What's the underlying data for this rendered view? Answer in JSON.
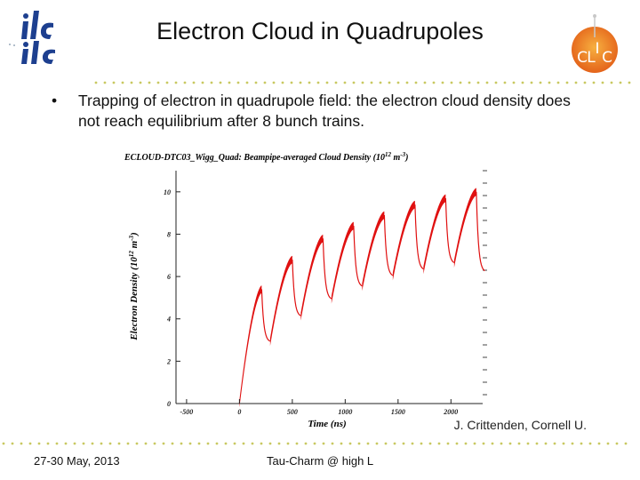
{
  "slide": {
    "title": "Electron Cloud in Quadrupoles",
    "bullet": "Trapping of electron in quadrupole field: the electron cloud density does not  reach equilibrium after 8 bunch trains.",
    "credit": "J. Crittenden, Cornell U.",
    "footer_left": "27-30 May, 2013",
    "footer_center": "Tau-Charm @ high L"
  },
  "logos": {
    "left": "ilc",
    "right_letters": [
      "C",
      "L",
      "I",
      "C"
    ]
  },
  "colors": {
    "accent_dots": "#c8c860",
    "curve": "#e01010",
    "clic_orange": "#f08020"
  },
  "chart_data": {
    "type": "line",
    "title": "ECLOUD-DTC03_Wigg_Quad: Beampipe-averaged Cloud Density (10",
    "title_exp": "12",
    "title_unit": " m",
    "title_unit_exp": "-3",
    "title_close": ")",
    "xlabel": "Time (ns)",
    "ylabel": "Electron Density (10",
    "ylabel_exp": "12",
    "ylabel_unit": " m",
    "ylabel_unit_exp": "-3",
    "ylabel_close": ")",
    "xlim": [
      -600,
      2300
    ],
    "ylim": [
      0,
      11
    ],
    "xticks": [
      {
        "value": -500,
        "label": "-500"
      },
      {
        "value": 0,
        "label": "0"
      },
      {
        "value": 500,
        "label": "500"
      },
      {
        "value": 1000,
        "label": "1000"
      },
      {
        "value": 1500,
        "label": "1500"
      },
      {
        "value": 2000,
        "label": "2000"
      }
    ],
    "yticks": [
      {
        "value": 0,
        "label": "0"
      },
      {
        "value": 2,
        "label": "2"
      },
      {
        "value": 4,
        "label": "4"
      },
      {
        "value": 6,
        "label": "6"
      },
      {
        "value": 8,
        "label": "8"
      },
      {
        "value": 10,
        "label": "10"
      }
    ],
    "bunch_trains": [
      {
        "start": 0,
        "end": 210,
        "start_value": 0.0,
        "peak": 5.4,
        "floor": 2.9
      },
      {
        "start": 290,
        "end": 500,
        "start_value": 2.9,
        "peak": 6.8,
        "floor": 4.1
      },
      {
        "start": 580,
        "end": 790,
        "start_value": 4.1,
        "peak": 7.8,
        "floor": 4.9
      },
      {
        "start": 870,
        "end": 1080,
        "start_value": 4.9,
        "peak": 8.4,
        "floor": 5.5
      },
      {
        "start": 1160,
        "end": 1370,
        "start_value": 5.5,
        "peak": 8.9,
        "floor": 6.0
      },
      {
        "start": 1450,
        "end": 1660,
        "start_value": 6.0,
        "peak": 9.4,
        "floor": 6.3
      },
      {
        "start": 1740,
        "end": 1950,
        "start_value": 6.3,
        "peak": 9.7,
        "floor": 6.6
      },
      {
        "start": 2030,
        "end": 2240,
        "start_value": 6.6,
        "peak": 10.0,
        "floor": 6.2
      }
    ],
    "grid": false
  }
}
